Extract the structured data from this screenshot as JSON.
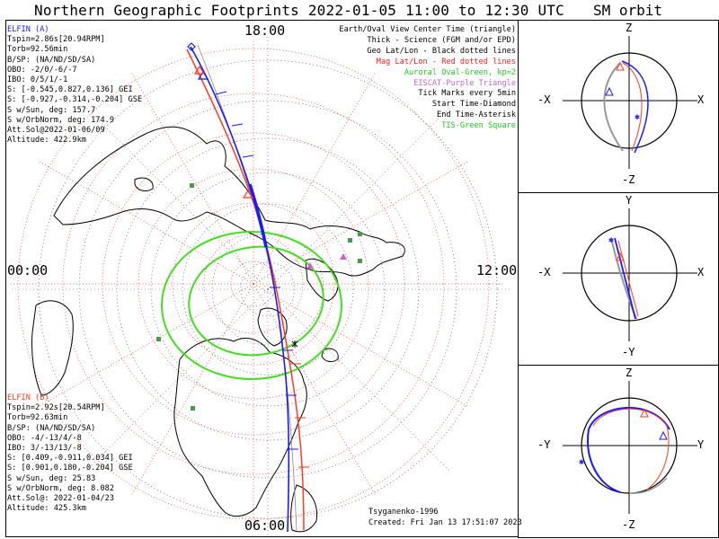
{
  "title": "Northern Geographic Footprints 2022-01-05 11:00 to 12:30 UTC",
  "sm_title": "SM orbit",
  "hours": {
    "top": "18:00",
    "left": "00:00",
    "right": "12:00",
    "bottom": "06:00"
  },
  "elfin_a": {
    "name": "ELFIN (A)",
    "lines": [
      "Tspin=2.86s[20.94RPM]",
      "Torb=92.56min",
      "B/SP: (NA/ND/SD/SA)",
      "OBO: -2/0/-6/-7",
      "IBO: 0/5/1/-1",
      "S: [-0.545,0.827,0.136] GEI",
      "S: [-0.927,-0.314,-0.204] GSE",
      "S w/Sun, deg: 157.7",
      "S w/OrbNorm, deg: 174.9",
      "Att.Sol@2022-01-06/09",
      "Altitude: 422.9km"
    ]
  },
  "elfin_b": {
    "name": "ELFIN (B)",
    "lines": [
      "Tspin=2.92s[20.54RPM]",
      "Torb=92.63min",
      "B/SP: (NA/ND/SD/SA)",
      "OBO: -4/-13/4/-8",
      "IBO: 3/-13/13/-8",
      "S: [0.409,-0.911,0.034] GEI",
      "S: [0.901,0.180,-0.204] GSE",
      "S w/Sun, deg: 25.83",
      "S w/OrbNorm, deg: 8.082",
      "Att.Sol@: 2022-01-04/23",
      "Altitude: 425.3km"
    ]
  },
  "legend": [
    {
      "text": "Earth/Oval View Center Time (triangle)",
      "color": "#000000"
    },
    {
      "text": "Thick - Science (FGM and/or EPD)",
      "color": "#000000"
    },
    {
      "text": "Geo Lat/Lon - Black dotted lines",
      "color": "#000000"
    },
    {
      "text": "Mag Lat/Lon - Red dotted lines",
      "color": "#ff2020"
    },
    {
      "text": "Auroral Oval-Green, kp=2",
      "color": "#22cc22"
    },
    {
      "text": "EISCAT-Purple Triangle",
      "color": "#cc66cc"
    },
    {
      "text": "Tick Marks every 5min",
      "color": "#000000"
    },
    {
      "text": "Start Time-Diamond",
      "color": "#000000"
    },
    {
      "text": "End Time-Asterisk",
      "color": "#000000"
    },
    {
      "text": "TIS-Green Square",
      "color": "#22cc22"
    }
  ],
  "credits": {
    "model": "Tsyganenko-1996",
    "created": "Created: Fri Jan 13 17:51:07 2023"
  },
  "sm_panels": [
    {
      "top": "Z",
      "bottom": "-Z",
      "left": "-X",
      "right": "X"
    },
    {
      "top": "Y",
      "bottom": "-Y",
      "left": "-X",
      "right": "X"
    },
    {
      "top": "Z",
      "bottom": "-Z",
      "left": "-Y",
      "right": "Y"
    }
  ],
  "colors": {
    "probe_a": "#1a1aff",
    "probe_b": "#ff3b1f",
    "oval": "#44dd22",
    "mag_grid": "#ff2020"
  }
}
